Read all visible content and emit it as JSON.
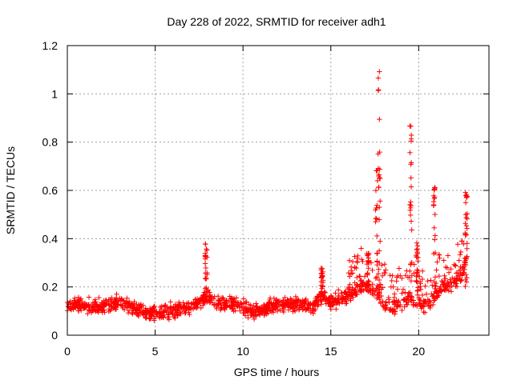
{
  "chart_data": {
    "type": "scatter",
    "title": "Day 228 of 2022, SRMTID for receiver adh1",
    "xlabel": "GPS time / hours",
    "ylabel": "SRMTID / TECUs",
    "xlim": [
      0,
      24
    ],
    "ylim": [
      0,
      1.2
    ],
    "x_ticks": [
      0,
      5,
      10,
      15,
      20
    ],
    "x_tick_labels": [
      "0",
      "5",
      "10",
      "15",
      "20"
    ],
    "y_ticks": [
      0,
      0.2,
      0.4,
      0.6,
      0.8,
      1,
      1.2
    ],
    "y_tick_labels": [
      "0",
      "0.2",
      "0.4",
      "0.6",
      "0.8",
      "1",
      "1.2"
    ],
    "grid": true,
    "marker": "+",
    "marker_color": "#ff0000",
    "profile": [
      [
        0.0,
        0.12
      ],
      [
        0.5,
        0.13
      ],
      [
        1.0,
        0.12
      ],
      [
        1.5,
        0.12
      ],
      [
        2.0,
        0.12
      ],
      [
        2.5,
        0.13
      ],
      [
        3.0,
        0.14
      ],
      [
        3.5,
        0.12
      ],
      [
        4.0,
        0.11
      ],
      [
        4.5,
        0.09
      ],
      [
        5.0,
        0.09
      ],
      [
        5.5,
        0.09
      ],
      [
        6.0,
        0.1
      ],
      [
        6.5,
        0.11
      ],
      [
        7.0,
        0.12
      ],
      [
        7.5,
        0.14
      ],
      [
        8.0,
        0.16
      ],
      [
        8.5,
        0.13
      ],
      [
        9.0,
        0.13
      ],
      [
        9.5,
        0.13
      ],
      [
        10.0,
        0.12
      ],
      [
        10.5,
        0.1
      ],
      [
        11.0,
        0.1
      ],
      [
        11.5,
        0.12
      ],
      [
        12.0,
        0.13
      ],
      [
        12.5,
        0.13
      ],
      [
        13.0,
        0.13
      ],
      [
        13.5,
        0.13
      ],
      [
        14.0,
        0.12
      ],
      [
        14.5,
        0.16
      ],
      [
        15.0,
        0.14
      ],
      [
        15.5,
        0.15
      ],
      [
        16.0,
        0.17
      ],
      [
        16.5,
        0.19
      ],
      [
        17.0,
        0.2
      ],
      [
        17.5,
        0.18
      ],
      [
        18.0,
        0.12
      ],
      [
        18.5,
        0.11
      ],
      [
        19.0,
        0.12
      ],
      [
        19.5,
        0.15
      ],
      [
        20.0,
        0.12
      ],
      [
        20.5,
        0.12
      ],
      [
        21.0,
        0.17
      ],
      [
        21.5,
        0.2
      ],
      [
        22.0,
        0.21
      ],
      [
        22.5,
        0.26
      ],
      [
        22.8,
        0.33
      ]
    ],
    "spikes": [
      {
        "x": 7.9,
        "peak": 0.38
      },
      {
        "x": 14.5,
        "peak": 0.28
      },
      {
        "x": 17.1,
        "peak": 0.34
      },
      {
        "x": 17.75,
        "peak": 1.1
      },
      {
        "x": 17.6,
        "peak": 0.72
      },
      {
        "x": 19.55,
        "peak": 0.9
      },
      {
        "x": 19.9,
        "peak": 0.4
      },
      {
        "x": 20.9,
        "peak": 0.62
      },
      {
        "x": 22.7,
        "peak": 0.6
      }
    ],
    "point_count": 1400,
    "seed": 228
  }
}
